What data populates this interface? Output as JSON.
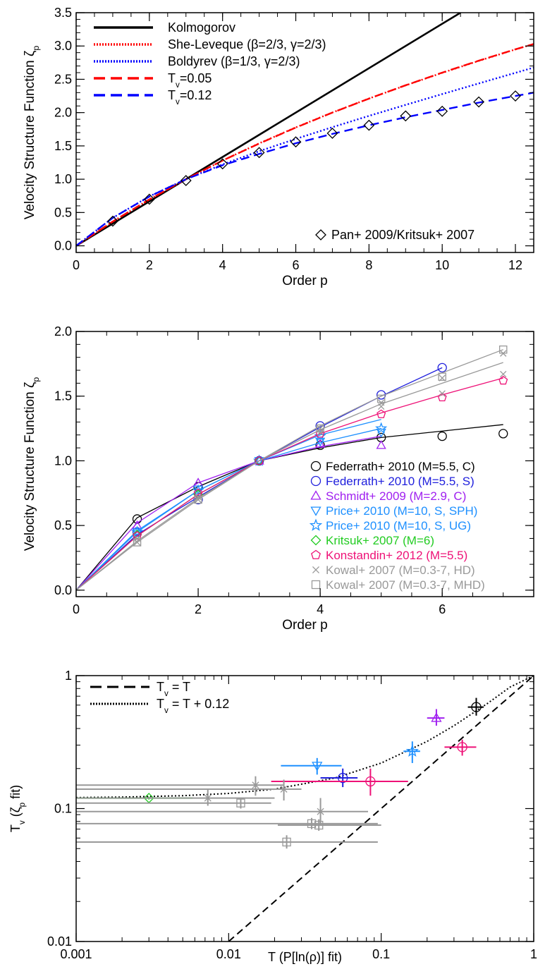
{
  "chart_data": [
    {
      "type": "line",
      "xlabel": "Order p",
      "ylabel": "Velocity Structure Function ζ",
      "ylabel_sub": "p",
      "xlim": [
        0,
        12.5
      ],
      "ylim": [
        -0.1,
        3.5
      ],
      "xticks": [
        0,
        2,
        4,
        6,
        8,
        10,
        12
      ],
      "yticks": [
        0.0,
        0.5,
        1.0,
        1.5,
        2.0,
        2.5,
        3.0,
        3.5
      ],
      "grid": false,
      "legend_position": "top-left",
      "series": [
        {
          "name": "Kolmogorov",
          "style": "solid",
          "color": "#000000",
          "x": [
            0,
            10.5
          ],
          "y": [
            0,
            3.5
          ]
        },
        {
          "name": "She-Leveque (β=2/3, γ=2/3)",
          "style": "dotted",
          "color": "#ff0000",
          "x": [
            0,
            1,
            2,
            3,
            4,
            5,
            6,
            7,
            8,
            9,
            10,
            11,
            12,
            12.5
          ],
          "y": [
            0,
            0.364,
            0.696,
            1.0,
            1.28,
            1.538,
            1.778,
            2.001,
            2.211,
            2.409,
            2.597,
            2.777,
            2.949,
            3.03
          ]
        },
        {
          "name": "Boldyrev (β=1/3, γ=2/3)",
          "style": "dotted",
          "color": "#0000ff",
          "x": [
            0,
            1,
            2,
            3,
            4,
            5,
            6,
            7,
            8,
            9,
            10,
            11,
            12,
            12.5
          ],
          "y": [
            0,
            0.42,
            0.742,
            1.0,
            1.222,
            1.42,
            1.605,
            1.781,
            1.951,
            2.116,
            2.278,
            2.438,
            2.597,
            2.676
          ]
        },
        {
          "name": "T",
          "name_sub": "v",
          "name_rest": "=0.05",
          "style": "dashed",
          "color": "#ff0000",
          "x": [
            0,
            1,
            2,
            3,
            4,
            5,
            6,
            7,
            8,
            9,
            10,
            11,
            12,
            12.5
          ],
          "y": [
            0,
            0.365,
            0.696,
            1.0,
            1.28,
            1.535,
            1.775,
            2.0,
            2.21,
            2.41,
            2.6,
            2.78,
            2.95,
            3.03
          ]
        },
        {
          "name": "T",
          "name_sub": "v",
          "name_rest": "=0.12",
          "style": "dashed",
          "color": "#0000ff",
          "x": [
            0,
            1,
            2,
            3,
            4,
            5,
            6,
            7,
            8,
            9,
            10,
            11,
            12,
            12.5
          ],
          "y": [
            0,
            0.42,
            0.74,
            1.0,
            1.21,
            1.38,
            1.54,
            1.68,
            1.81,
            1.93,
            2.04,
            2.15,
            2.25,
            2.3
          ]
        },
        {
          "name": "Pan+ 2009/Kritsuk+ 2007",
          "style": "diamond",
          "color": "#000000",
          "x": [
            1,
            2,
            3,
            4,
            5,
            6,
            7,
            8,
            9,
            10,
            11,
            12
          ],
          "y": [
            0.37,
            0.7,
            0.98,
            1.23,
            1.4,
            1.56,
            1.69,
            1.81,
            1.95,
            2.02,
            2.16,
            2.25
          ]
        }
      ]
    },
    {
      "type": "line",
      "xlabel": "Order p",
      "ylabel": "Velocity Structure Function ζ",
      "ylabel_sub": "p",
      "xlim": [
        0,
        7.5
      ],
      "ylim": [
        -0.05,
        2.0
      ],
      "xticks": [
        0,
        2,
        4,
        6
      ],
      "yticks": [
        0.0,
        0.5,
        1.0,
        1.5,
        2.0
      ],
      "grid": false,
      "legend_position": "bottom-right",
      "series": [
        {
          "name": "Federrath+ 2010 (M=5.5, C)",
          "marker": "circle",
          "color": "#000000",
          "x": [
            1,
            2,
            3,
            4,
            5,
            6,
            7
          ],
          "y": [
            0.55,
            0.8,
            1.0,
            1.12,
            1.18,
            1.19,
            1.21
          ],
          "fit": [
            0,
            0.56,
            0.8,
            1.0,
            1.1,
            1.18,
            1.23,
            1.28
          ]
        },
        {
          "name": "Federrath+ 2010 (M=5.5, S)",
          "marker": "circle",
          "color": "#2020dd",
          "x": [
            1,
            2,
            3,
            4,
            5,
            6
          ],
          "y": [
            0.45,
            0.7,
            1.0,
            1.27,
            1.51,
            1.72
          ],
          "fit": [
            0,
            0.43,
            0.72,
            1.0,
            1.26,
            1.5,
            1.72
          ]
        },
        {
          "name": "Schmidt+ 2009 (M=2.9, C)",
          "marker": "triangle",
          "color": "#a020f0",
          "x": [
            1,
            2,
            3,
            4,
            5
          ],
          "y": [
            0.5,
            0.83,
            1.0,
            1.13,
            1.12
          ],
          "fit": [
            0,
            0.52,
            0.83,
            1.0,
            1.11,
            1.19
          ]
        },
        {
          "name": "Price+ 2010 (M=10, S, SPH)",
          "marker": "triangle-down",
          "color": "#1e90ff",
          "x": [
            1,
            2,
            3,
            4,
            5
          ],
          "y": [
            0.45,
            0.78,
            1.0,
            1.15,
            1.22
          ],
          "fit": [
            0,
            0.46,
            0.77,
            1.0,
            1.14,
            1.25
          ]
        },
        {
          "name": "Price+ 2010 (M=10, S, UG)",
          "marker": "star",
          "color": "#1e90ff",
          "x": [
            1,
            2,
            3,
            4,
            5
          ],
          "y": [
            0.45,
            0.77,
            1.0,
            1.19,
            1.25
          ],
          "fit": [
            0,
            0.45,
            0.77,
            1.0,
            1.2,
            1.32
          ]
        },
        {
          "name": "Kritsuk+ 2007 (M=6)",
          "marker": "diamond",
          "color": "#22cc22",
          "x": [
            1,
            2,
            3
          ],
          "y": [
            0.43,
            0.74,
            1.0
          ],
          "fit": [
            0,
            0.42,
            0.74,
            1.0
          ]
        },
        {
          "name": "Konstandin+ 2012 (M=5.5)",
          "marker": "pentagon",
          "color": "#ee1177",
          "x": [
            1,
            2,
            3,
            4,
            5,
            6,
            7
          ],
          "y": [
            0.42,
            0.75,
            1.0,
            1.21,
            1.36,
            1.49,
            1.62
          ],
          "fit": [
            0,
            0.42,
            0.74,
            1.0,
            1.21,
            1.37,
            1.51,
            1.64
          ]
        },
        {
          "name": "Kowal+ 2007 (M=0.3-7, HD)",
          "marker": "x",
          "color": "#999999",
          "x": [
            1,
            1,
            2,
            2,
            4,
            4,
            5,
            5,
            6,
            6,
            7,
            7
          ],
          "y": [
            0.37,
            0.4,
            0.7,
            0.72,
            1.22,
            1.25,
            1.42,
            1.45,
            1.52,
            1.64,
            1.67,
            1.83
          ],
          "fit": [
            0,
            0.38,
            0.71,
            1.0,
            1.24,
            1.44,
            1.6,
            1.76
          ]
        },
        {
          "name": "Kowal+ 2007 (M=0.3-7, MHD)",
          "marker": "square",
          "color": "#999999",
          "x": [
            1,
            2,
            4,
            5,
            6,
            7
          ],
          "y": [
            0.37,
            0.7,
            1.25,
            1.48,
            1.65,
            1.86
          ],
          "fit": [
            0,
            0.37,
            0.7,
            1.0,
            1.27,
            1.5,
            1.68,
            1.86
          ]
        }
      ]
    },
    {
      "type": "scatter",
      "xlabel": "T (P[ln(ρ)] fit)",
      "ylabel": "T",
      "ylabel_sub": "v",
      "ylabel_rest": " (ζ",
      "ylabel_sub2": "p",
      "ylabel_end": " fit)",
      "xscale": "log",
      "yscale": "log",
      "xlim": [
        0.001,
        1
      ],
      "ylim": [
        0.01,
        1
      ],
      "xticks": [
        0.001,
        0.01,
        0.1,
        1
      ],
      "xticklabels": [
        "0.001",
        "0.01",
        "0.1",
        "1"
      ],
      "yticks": [
        0.01,
        0.1,
        1
      ],
      "yticklabels": [
        "0.01",
        "0.1",
        "1"
      ],
      "grid": false,
      "legend_position": "top-left",
      "legend": [
        {
          "label": "T",
          "sub": "v",
          "rest": " = T",
          "style": "dashed"
        },
        {
          "label": "T",
          "sub": "v",
          "rest": " = T + 0.12",
          "style": "dotted"
        }
      ],
      "lines": [
        {
          "label": "T_v = T",
          "style": "dashed",
          "x": [
            0.01,
            1
          ],
          "y": [
            0.01,
            1
          ]
        },
        {
          "label": "T_v = T + 0.12",
          "style": "dotted",
          "x": [
            0.001,
            0.002,
            0.005,
            0.01,
            0.02,
            0.05,
            0.1,
            0.2,
            0.3,
            0.5,
            0.7,
            1.0
          ],
          "y": [
            0.121,
            0.122,
            0.125,
            0.13,
            0.14,
            0.17,
            0.22,
            0.32,
            0.42,
            0.62,
            0.82,
            1.0
          ]
        }
      ],
      "points": [
        {
          "marker": "circle",
          "color": "#000000",
          "x": 0.42,
          "y": 0.58,
          "xerr": [
            0.37,
            0.47
          ],
          "yerr": [
            0.5,
            0.68
          ]
        },
        {
          "marker": "circle",
          "color": "#2020dd",
          "x": 0.056,
          "y": 0.17,
          "xerr": [
            0.04,
            0.07
          ],
          "yerr": [
            0.145,
            0.2
          ]
        },
        {
          "marker": "triangle",
          "color": "#a020f0",
          "x": 0.23,
          "y": 0.48,
          "xerr": [
            0.2,
            0.26
          ],
          "yerr": [
            0.42,
            0.56
          ]
        },
        {
          "marker": "triangle-down",
          "color": "#1e90ff",
          "x": 0.038,
          "y": 0.21,
          "xerr": [
            0.022,
            0.055
          ],
          "yerr": [
            0.18,
            0.24
          ]
        },
        {
          "marker": "star",
          "color": "#1e90ff",
          "x": 0.16,
          "y": 0.27,
          "xerr": [
            0.14,
            0.18
          ],
          "yerr": [
            0.22,
            0.32
          ]
        },
        {
          "marker": "diamond",
          "color": "#22cc22",
          "x": 0.003,
          "y": 0.12,
          "xerr": [
            0.001,
            0.0058
          ],
          "yerr": [
            0.117,
            0.123
          ]
        },
        {
          "marker": "circle",
          "color": "#ee1177",
          "x": 0.34,
          "y": 0.29,
          "xerr": [
            0.26,
            0.42
          ],
          "yerr": [
            0.25,
            0.33
          ]
        },
        {
          "marker": "circle",
          "color": "#ee1177",
          "x": 0.085,
          "y": 0.16,
          "xerr": [
            0.019,
            0.15
          ],
          "yerr": [
            0.125,
            0.2
          ]
        },
        {
          "marker": "x",
          "color": "#999999",
          "x": 0.0073,
          "y": 0.12,
          "xerr": [
            0.001,
            0.02
          ],
          "yerr": [
            0.105,
            0.14
          ]
        },
        {
          "marker": "x",
          "color": "#999999",
          "x": 0.015,
          "y": 0.15,
          "xerr": [
            0.001,
            0.023
          ],
          "yerr": [
            0.125,
            0.175
          ]
        },
        {
          "marker": "x",
          "color": "#999999",
          "x": 0.023,
          "y": 0.14,
          "xerr": [
            0.001,
            0.03
          ],
          "yerr": [
            0.115,
            0.165
          ]
        },
        {
          "marker": "x",
          "color": "#999999",
          "x": 0.04,
          "y": 0.095,
          "xerr": [
            0.001,
            0.082
          ],
          "yerr": [
            0.075,
            0.12
          ]
        },
        {
          "marker": "square",
          "color": "#999999",
          "x": 0.012,
          "y": 0.11,
          "xerr": [
            0.001,
            0.019
          ],
          "yerr": [
            0.1,
            0.12
          ]
        },
        {
          "marker": "square",
          "color": "#999999",
          "x": 0.035,
          "y": 0.077,
          "xerr": [
            0.001,
            0.095
          ],
          "yerr": [
            0.07,
            0.085
          ]
        },
        {
          "marker": "square",
          "color": "#999999",
          "x": 0.039,
          "y": 0.075,
          "xerr": [
            0.021,
            0.1
          ],
          "yerr": [
            0.068,
            0.083
          ]
        },
        {
          "marker": "square",
          "color": "#999999",
          "x": 0.024,
          "y": 0.056,
          "xerr": [
            0.001,
            0.095
          ],
          "yerr": [
            0.05,
            0.063
          ]
        }
      ]
    }
  ]
}
